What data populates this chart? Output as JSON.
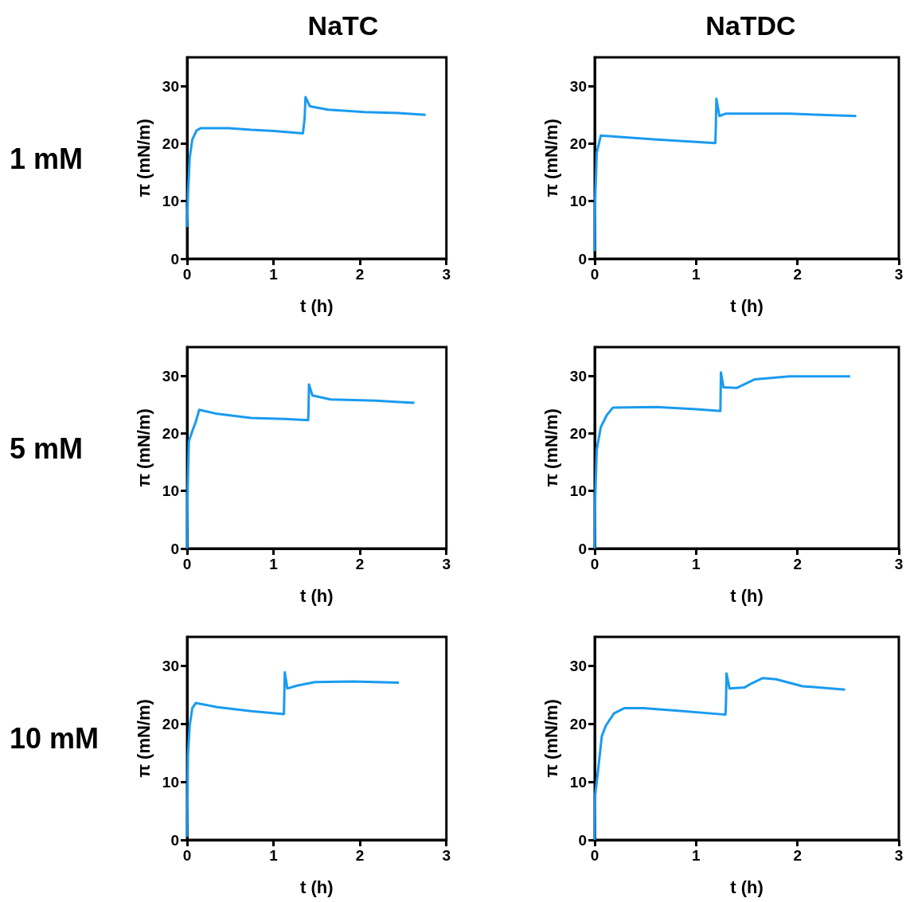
{
  "chart_data": [
    {
      "type": "line",
      "title": "NaTC",
      "annotations": [
        "1 mM"
      ],
      "xlabel": "t (h)",
      "ylabel": "π (mN/m)",
      "xlim": [
        0,
        3
      ],
      "xticks": [
        0,
        1,
        2,
        3
      ],
      "ylim": [
        0,
        35
      ],
      "yticks": [
        0,
        10,
        20,
        30
      ],
      "x": [
        0,
        0.01,
        0.03,
        0.06,
        0.11,
        0.16,
        0.48,
        0.74,
        1.0,
        1.34,
        1.36,
        1.37,
        1.42,
        1.63,
        2.05,
        2.45,
        2.76
      ],
      "series": [
        {
          "color": "#1a9bf0",
          "values": [
            5.5,
            11,
            17.5,
            20.7,
            22.3,
            22.7,
            22.7,
            22.4,
            22.2,
            21.8,
            24.4,
            28.1,
            26.5,
            25.9,
            25.5,
            25.3,
            25.0
          ]
        }
      ]
    },
    {
      "type": "line",
      "title": "NaTDC",
      "xlabel": "t (h)",
      "ylabel": "π (mN/m)",
      "xlim": [
        0,
        3
      ],
      "xticks": [
        0,
        1,
        2,
        3
      ],
      "ylim": [
        0,
        35
      ],
      "yticks": [
        0,
        10,
        20,
        30
      ],
      "x": [
        0,
        0.005,
        0.02,
        0.06,
        0.22,
        0.61,
        1.0,
        1.19,
        1.195,
        1.2,
        1.23,
        1.29,
        1.92,
        2.58
      ],
      "series": [
        {
          "color": "#1a9bf0",
          "values": [
            1.3,
            10.6,
            18.4,
            21.4,
            21.2,
            20.7,
            20.3,
            20.1,
            23.0,
            27.8,
            24.8,
            25.2,
            25.2,
            24.8
          ]
        }
      ]
    },
    {
      "type": "line",
      "annotations": [
        "5 mM"
      ],
      "xlabel": "t (h)",
      "ylabel": "π (mN/m)",
      "xlim": [
        0,
        3
      ],
      "xticks": [
        0,
        1,
        2,
        3
      ],
      "ylim": [
        0,
        35
      ],
      "yticks": [
        0,
        10,
        20,
        30
      ],
      "x": [
        0,
        0.005,
        0.02,
        0.06,
        0.1,
        0.14,
        0.35,
        0.74,
        1.13,
        1.4,
        1.405,
        1.41,
        1.45,
        1.66,
        2.18,
        2.63
      ],
      "series": [
        {
          "color": "#1a9bf0",
          "values": [
            0,
            8.9,
            18.6,
            20.4,
            22.0,
            24.1,
            23.4,
            22.7,
            22.5,
            22.3,
            23.9,
            28.5,
            26.6,
            25.9,
            25.7,
            25.3
          ]
        }
      ]
    },
    {
      "type": "line",
      "xlabel": "t (h)",
      "ylabel": "π (mN/m)",
      "xlim": [
        0,
        3
      ],
      "xticks": [
        0,
        1,
        2,
        3
      ],
      "ylim": [
        0,
        35
      ],
      "yticks": [
        0,
        10,
        20,
        30
      ],
      "x": [
        0,
        0.005,
        0.02,
        0.06,
        0.12,
        0.18,
        0.61,
        1.0,
        1.24,
        1.245,
        1.27,
        1.4,
        1.58,
        1.92,
        2.52
      ],
      "series": [
        {
          "color": "#1a9bf0",
          "values": [
            0,
            8.9,
            17.2,
            21.1,
            23.2,
            24.5,
            24.6,
            24.2,
            23.9,
            30.6,
            28.0,
            27.9,
            29.4,
            29.9,
            29.9
          ]
        }
      ]
    },
    {
      "type": "line",
      "annotations": [
        "10 mM"
      ],
      "xlabel": "t (h)",
      "ylabel": "π (mN/m)",
      "xlim": [
        0,
        3
      ],
      "xticks": [
        0,
        1,
        2,
        3
      ],
      "ylim": [
        0,
        35
      ],
      "yticks": [
        0,
        10,
        20,
        30
      ],
      "x": [
        0,
        0.005,
        0.01,
        0.03,
        0.06,
        0.1,
        0.35,
        0.74,
        1.12,
        1.125,
        1.13,
        1.16,
        1.27,
        1.48,
        1.92,
        2.45
      ],
      "series": [
        {
          "color": "#1a9bf0",
          "values": [
            0.5,
            6.9,
            14.7,
            19.7,
            22.7,
            23.6,
            22.9,
            22.2,
            21.7,
            25.2,
            28.9,
            26.1,
            26.6,
            27.2,
            27.3,
            27.1
          ]
        }
      ]
    },
    {
      "type": "line",
      "xlabel": "t (h)",
      "ylabel": "π (mN/m)",
      "xlim": [
        0,
        3
      ],
      "xticks": [
        0,
        1,
        2,
        3
      ],
      "ylim": [
        0,
        35
      ],
      "yticks": [
        0,
        10,
        20,
        30
      ],
      "x": [
        0,
        0.005,
        0.03,
        0.07,
        0.11,
        0.19,
        0.29,
        0.48,
        0.87,
        1.29,
        1.295,
        1.3,
        1.33,
        1.48,
        1.55,
        1.66,
        1.79,
        2.05,
        2.47
      ],
      "series": [
        {
          "color": "#1a9bf0",
          "values": [
            0,
            7.8,
            11.5,
            17.9,
            19.7,
            21.8,
            22.7,
            22.7,
            22.2,
            21.6,
            23.6,
            28.7,
            26.1,
            26.3,
            27.0,
            27.9,
            27.7,
            26.5,
            25.9
          ]
        }
      ]
    }
  ]
}
